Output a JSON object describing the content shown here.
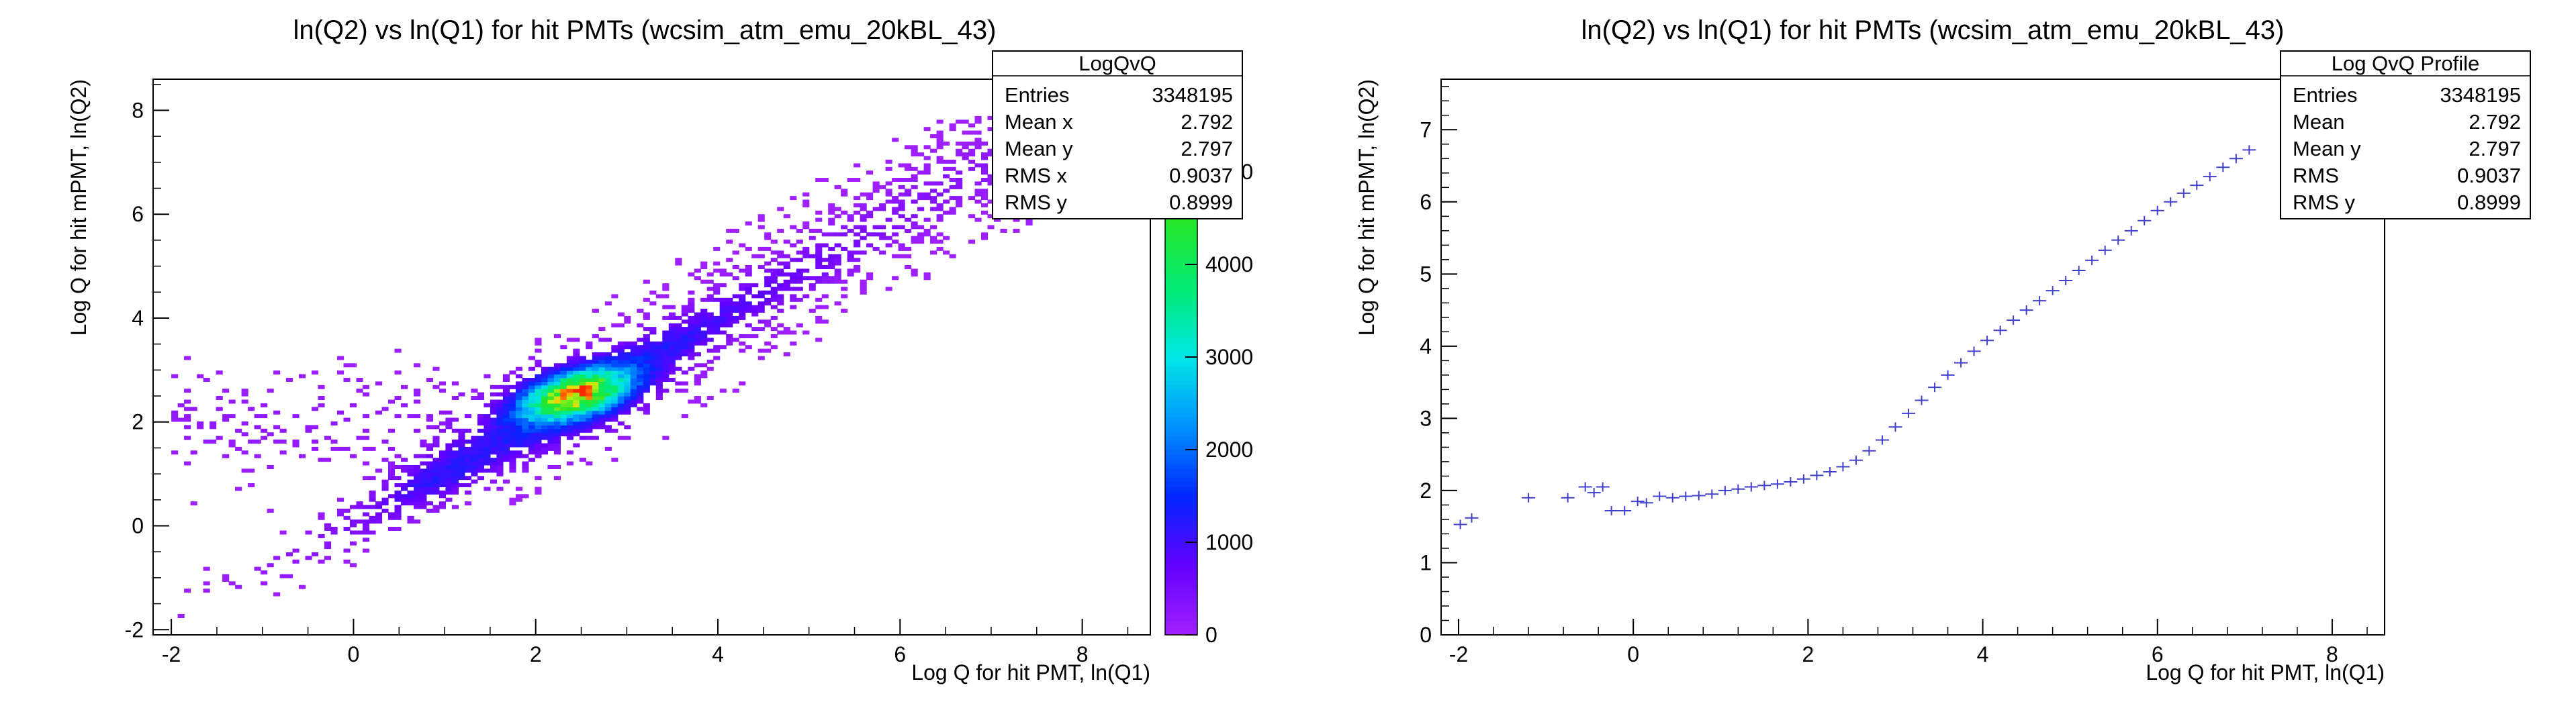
{
  "chart_data": [
    {
      "type": "heatmap",
      "title": "ln(Q2) vs ln(Q1) for hit PMTs (wcsim_atm_emu_20kBL_43)",
      "xlabel": "Log Q for hit PMT, ln(Q1)",
      "ylabel": "Log Q for hit mPMT, ln(Q2)",
      "xlim": [
        -2.2,
        8.6
      ],
      "ylim": [
        -2.1,
        8.6
      ],
      "x_ticks": [
        "-2",
        "0",
        "2",
        "4",
        "6",
        "8"
      ],
      "y_ticks": [
        "-2",
        "0",
        "2",
        "4",
        "6",
        "8"
      ],
      "colorbar": {
        "range": [
          0,
          6000
        ],
        "ticks": [
          "0",
          "1000",
          "2000",
          "3000",
          "4000",
          "5000"
        ],
        "partially_hidden_label": "00"
      },
      "density_core": {
        "peak_x": 2.4,
        "peak_y": 2.5,
        "peak_count": 5200
      },
      "stats": {
        "name": "LogQvQ",
        "rows": [
          {
            "label": "Entries",
            "value": "3348195"
          },
          {
            "label": "Mean x",
            "value": "2.792"
          },
          {
            "label": "Mean y",
            "value": "2.797"
          },
          {
            "label": "RMS x",
            "value": "0.9037"
          },
          {
            "label": "RMS y",
            "value": "0.8999"
          }
        ]
      }
    },
    {
      "type": "scatter",
      "title": "ln(Q2) vs ln(Q1) for hit PMTs (wcsim_atm_emu_20kBL_43)",
      "xlabel": "Log Q for hit PMT, ln(Q1)",
      "ylabel": "Log Q for hit mPMT, ln(Q2)",
      "xlim": [
        -2.2,
        8.6
      ],
      "ylim": [
        0,
        7.7
      ],
      "x_ticks": [
        "-2",
        "0",
        "2",
        "4",
        "6",
        "8"
      ],
      "y_ticks": [
        "0",
        "1",
        "2",
        "3",
        "4",
        "5",
        "6",
        "7"
      ],
      "marker_color": "#4040cc",
      "stats": {
        "name": "Log QvQ Profile",
        "rows": [
          {
            "label": "Entries",
            "value": "3348195"
          },
          {
            "label": "Mean",
            "value": "2.792"
          },
          {
            "label": "Mean y",
            "value": "2.797"
          },
          {
            "label": "RMS",
            "value": "0.9037"
          },
          {
            "label": "RMS y",
            "value": "0.8999"
          }
        ]
      },
      "points": [
        {
          "x": -1.98,
          "y": 1.53
        },
        {
          "x": -1.85,
          "y": 1.62
        },
        {
          "x": -1.2,
          "y": 1.9
        },
        {
          "x": -0.75,
          "y": 1.9
        },
        {
          "x": -0.55,
          "y": 2.05
        },
        {
          "x": -0.45,
          "y": 1.97
        },
        {
          "x": -0.35,
          "y": 2.05
        },
        {
          "x": -0.25,
          "y": 1.72
        },
        {
          "x": -0.1,
          "y": 1.72
        },
        {
          "x": 0.05,
          "y": 1.85
        },
        {
          "x": 0.15,
          "y": 1.83
        },
        {
          "x": 0.3,
          "y": 1.92
        },
        {
          "x": 0.45,
          "y": 1.9
        },
        {
          "x": 0.6,
          "y": 1.92
        },
        {
          "x": 0.75,
          "y": 1.93
        },
        {
          "x": 0.9,
          "y": 1.95
        },
        {
          "x": 1.05,
          "y": 2.0
        },
        {
          "x": 1.2,
          "y": 2.02
        },
        {
          "x": 1.35,
          "y": 2.05
        },
        {
          "x": 1.5,
          "y": 2.07
        },
        {
          "x": 1.65,
          "y": 2.09
        },
        {
          "x": 1.8,
          "y": 2.12
        },
        {
          "x": 1.95,
          "y": 2.16
        },
        {
          "x": 2.1,
          "y": 2.21
        },
        {
          "x": 2.25,
          "y": 2.26
        },
        {
          "x": 2.4,
          "y": 2.33
        },
        {
          "x": 2.55,
          "y": 2.42
        },
        {
          "x": 2.7,
          "y": 2.55
        },
        {
          "x": 2.85,
          "y": 2.7
        },
        {
          "x": 3.0,
          "y": 2.88
        },
        {
          "x": 3.15,
          "y": 3.07
        },
        {
          "x": 3.3,
          "y": 3.25
        },
        {
          "x": 3.45,
          "y": 3.43
        },
        {
          "x": 3.6,
          "y": 3.6
        },
        {
          "x": 3.75,
          "y": 3.77
        },
        {
          "x": 3.9,
          "y": 3.93
        },
        {
          "x": 4.05,
          "y": 4.08
        },
        {
          "x": 4.2,
          "y": 4.22
        },
        {
          "x": 4.35,
          "y": 4.36
        },
        {
          "x": 4.5,
          "y": 4.5
        },
        {
          "x": 4.65,
          "y": 4.63
        },
        {
          "x": 4.8,
          "y": 4.77
        },
        {
          "x": 4.95,
          "y": 4.91
        },
        {
          "x": 5.1,
          "y": 5.05
        },
        {
          "x": 5.25,
          "y": 5.19
        },
        {
          "x": 5.4,
          "y": 5.33
        },
        {
          "x": 5.55,
          "y": 5.47
        },
        {
          "x": 5.7,
          "y": 5.6
        },
        {
          "x": 5.85,
          "y": 5.74
        },
        {
          "x": 6.0,
          "y": 5.88
        },
        {
          "x": 6.15,
          "y": 6.0
        },
        {
          "x": 6.3,
          "y": 6.12
        },
        {
          "x": 6.45,
          "y": 6.23
        },
        {
          "x": 6.6,
          "y": 6.35
        },
        {
          "x": 6.75,
          "y": 6.48
        },
        {
          "x": 6.9,
          "y": 6.6
        },
        {
          "x": 7.05,
          "y": 6.72
        }
      ]
    }
  ]
}
